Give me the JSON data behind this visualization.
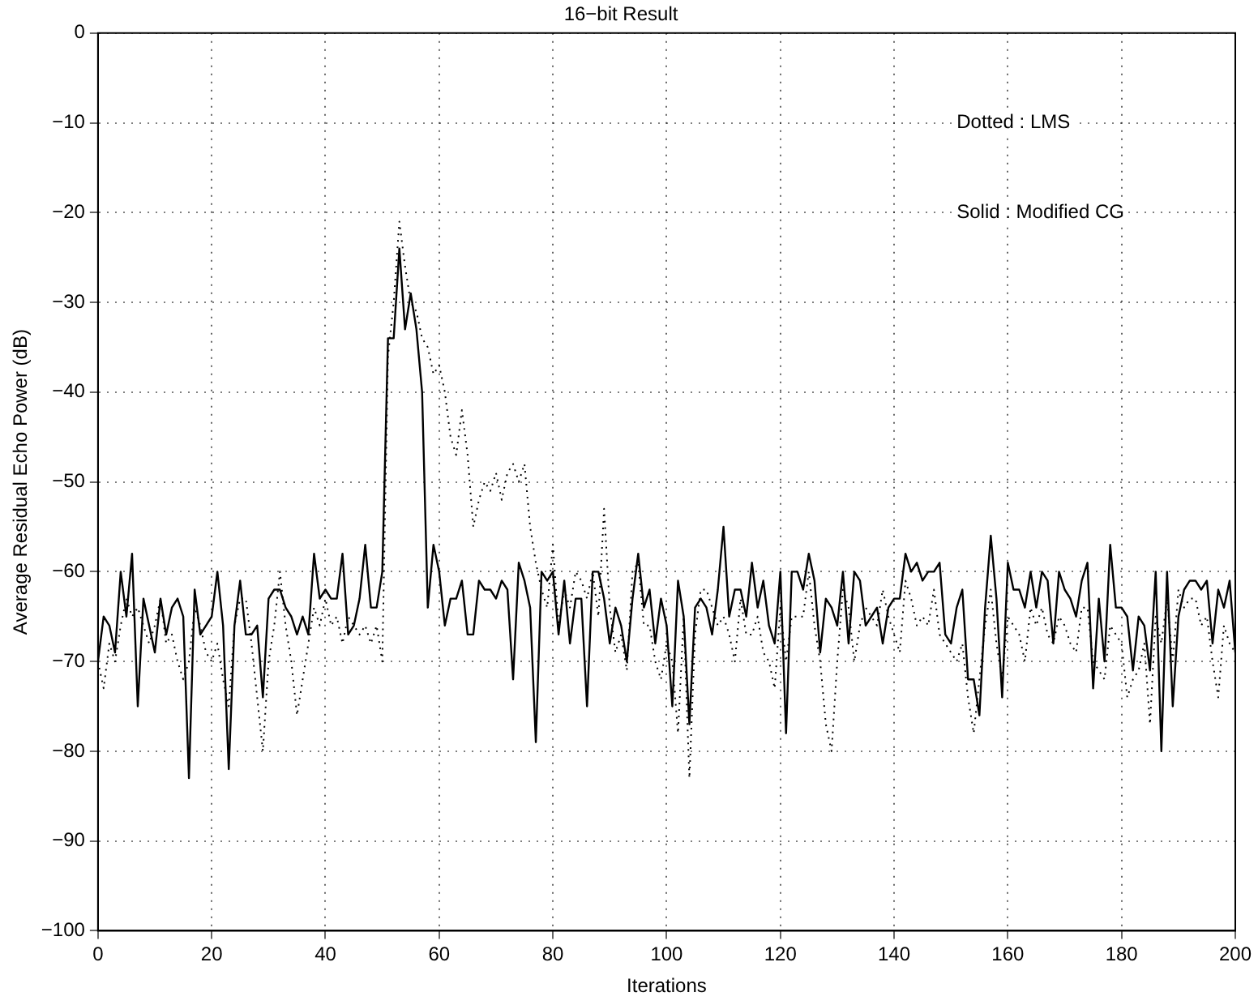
{
  "chart_data": {
    "type": "line",
    "title": "16−bit Result",
    "xlabel": "Iterations",
    "ylabel": "Average Residual Echo Power (dB)",
    "x": [
      0,
      1,
      2,
      3,
      4,
      5,
      6,
      7,
      8,
      9,
      10,
      11,
      12,
      13,
      14,
      15,
      16,
      17,
      18,
      19,
      20,
      21,
      22,
      23,
      24,
      25,
      26,
      27,
      28,
      29,
      30,
      31,
      32,
      33,
      34,
      35,
      36,
      37,
      38,
      39,
      40,
      41,
      42,
      43,
      44,
      45,
      46,
      47,
      48,
      49,
      50,
      51,
      52,
      53,
      54,
      55,
      56,
      57,
      58,
      59,
      60,
      61,
      62,
      63,
      64,
      65,
      66,
      67,
      68,
      69,
      70,
      71,
      72,
      73,
      74,
      75,
      76,
      77,
      78,
      79,
      80,
      81,
      82,
      83,
      84,
      85,
      86,
      87,
      88,
      89,
      90,
      91,
      92,
      93,
      94,
      95,
      96,
      97,
      98,
      99,
      100,
      101,
      102,
      103,
      104,
      105,
      106,
      107,
      108,
      109,
      110,
      111,
      112,
      113,
      114,
      115,
      116,
      117,
      118,
      119,
      120,
      121,
      122,
      123,
      124,
      125,
      126,
      127,
      128,
      129,
      130,
      131,
      132,
      133,
      134,
      135,
      136,
      137,
      138,
      139,
      140,
      141,
      142,
      143,
      144,
      145,
      146,
      147,
      148,
      149,
      150,
      151,
      152,
      153,
      154,
      155,
      156,
      157,
      158,
      159,
      160,
      161,
      162,
      163,
      164,
      165,
      166,
      167,
      168,
      169,
      170,
      171,
      172,
      173,
      174,
      175,
      176,
      177,
      178,
      179,
      180,
      181,
      182,
      183,
      184,
      185,
      186,
      187,
      188,
      189,
      190,
      191,
      192,
      193,
      194,
      195,
      196,
      197,
      198,
      199,
      200
    ],
    "series": [
      {
        "color": "#000000",
        "line_style": "dotted",
        "values": [
          -70,
          -73,
          -68,
          -70,
          -66,
          -63,
          -65,
          -64,
          -66,
          -68,
          -66,
          -63,
          -68,
          -67,
          -70,
          -72,
          -70,
          -64,
          -66,
          -69,
          -70,
          -68,
          -72,
          -75,
          -66,
          -63,
          -63,
          -68,
          -74,
          -80,
          -70,
          -66,
          -60,
          -66,
          -70,
          -76,
          -72,
          -68,
          -64,
          -66,
          -63,
          -66,
          -65,
          -68,
          -65,
          -66,
          -67,
          -66,
          -68,
          -66,
          -70,
          -36,
          -30,
          -21,
          -26,
          -30,
          -31,
          -34,
          -35,
          -38,
          -37,
          -40,
          -45,
          -47,
          -42,
          -47,
          -55,
          -52,
          -50,
          -51,
          -49,
          -52,
          -49,
          -48,
          -50,
          -48,
          -55,
          -59,
          -62,
          -64,
          -57,
          -66,
          -62,
          -64,
          -60,
          -61,
          -63,
          -60,
          -65,
          -53,
          -64,
          -69,
          -67,
          -71,
          -60,
          -59,
          -66,
          -66,
          -70,
          -72,
          -68,
          -70,
          -78,
          -65,
          -83,
          -67,
          -62,
          -62,
          -64,
          -66,
          -65,
          -67,
          -70,
          -63,
          -67,
          -67,
          -65,
          -69,
          -70,
          -73,
          -64,
          -70,
          -65,
          -65,
          -65,
          -60,
          -66,
          -70,
          -77,
          -80,
          -70,
          -62,
          -64,
          -70,
          -66,
          -64,
          -65,
          -66,
          -62,
          -65,
          -67,
          -69,
          -61,
          -63,
          -66,
          -65,
          -66,
          -62,
          -67,
          -68,
          -69,
          -70,
          -68,
          -74,
          -78,
          -72,
          -66,
          -62,
          -68,
          -72,
          -65,
          -66,
          -67,
          -70,
          -64,
          -66,
          -64,
          -67,
          -68,
          -65,
          -66,
          -68,
          -69,
          -64,
          -64,
          -70,
          -71,
          -72,
          -66,
          -67,
          -68,
          -74,
          -72,
          -71,
          -68,
          -77,
          -65,
          -68,
          -63,
          -70,
          -62,
          -64,
          -63,
          -63,
          -66,
          -65,
          -70,
          -74,
          -66,
          -68,
          -69
        ]
      },
      {
        "color": "#000000",
        "line_style": "solid",
        "values": [
          -70,
          -65,
          -66,
          -69,
          -60,
          -65,
          -58,
          -75,
          -63,
          -66,
          -69,
          -63,
          -67,
          -64,
          -63,
          -65,
          -83,
          -62,
          -67,
          -66,
          -65,
          -60,
          -66,
          -82,
          -66,
          -61,
          -67,
          -67,
          -66,
          -74,
          -63,
          -62,
          -62,
          -64,
          -65,
          -67,
          -65,
          -67,
          -58,
          -63,
          -62,
          -63,
          -63,
          -58,
          -67,
          -66,
          -63,
          -57,
          -64,
          -64,
          -60,
          -34,
          -34,
          -24,
          -33,
          -29,
          -33,
          -40,
          -64,
          -57,
          -60,
          -66,
          -63,
          -63,
          -61,
          -67,
          -67,
          -61,
          -62,
          -62,
          -63,
          -61,
          -62,
          -72,
          -59,
          -61,
          -64,
          -79,
          -60,
          -61,
          -60,
          -67,
          -61,
          -68,
          -63,
          -63,
          -75,
          -60,
          -60,
          -63,
          -68,
          -64,
          -66,
          -70,
          -63,
          -58,
          -64,
          -62,
          -68,
          -63,
          -66,
          -75,
          -61,
          -65,
          -77,
          -64,
          -63,
          -64,
          -67,
          -62,
          -55,
          -65,
          -62,
          -62,
          -65,
          -59,
          -64,
          -61,
          -66,
          -68,
          -60,
          -78,
          -60,
          -60,
          -62,
          -58,
          -61,
          -69,
          -63,
          -64,
          -66,
          -60,
          -68,
          -60,
          -61,
          -66,
          -65,
          -64,
          -68,
          -64,
          -63,
          -63,
          -58,
          -60,
          -59,
          -61,
          -60,
          -60,
          -59,
          -67,
          -68,
          -64,
          -62,
          -72,
          -72,
          -76,
          -64,
          -56,
          -63,
          -74,
          -59,
          -62,
          -62,
          -64,
          -60,
          -64,
          -60,
          -61,
          -68,
          -60,
          -62,
          -63,
          -65,
          -61,
          -59,
          -73,
          -63,
          -70,
          -57,
          -64,
          -64,
          -65,
          -71,
          -65,
          -66,
          -71,
          -60,
          -80,
          -60,
          -75,
          -65,
          -62,
          -61,
          -61,
          -62,
          -61,
          -68,
          -62,
          -64,
          -61,
          -69
        ]
      }
    ],
    "xlim": [
      0,
      200
    ],
    "xticks": [
      0,
      20,
      40,
      60,
      80,
      100,
      120,
      140,
      160,
      180,
      200
    ],
    "ylim": [
      -100,
      0
    ],
    "yticks": [
      -100,
      -90,
      -80,
      -70,
      -60,
      -50,
      -40,
      -30,
      -20,
      -10,
      0
    ],
    "grid": true,
    "legend": false,
    "marker": "none",
    "annotations": [
      "Dotted : LMS",
      "Solid : Modified CG"
    ]
  }
}
